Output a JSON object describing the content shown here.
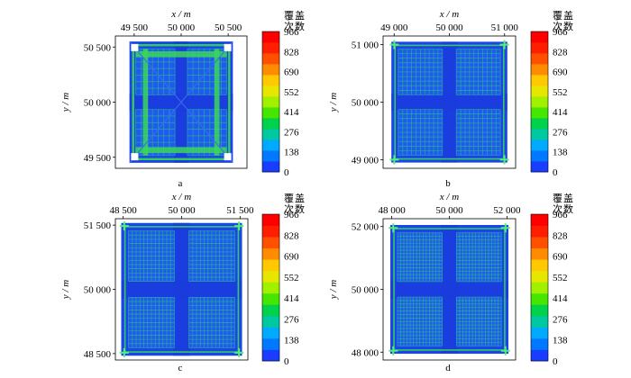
{
  "chart_data": [
    {
      "type": "heatmap",
      "panel_label": "a",
      "xlabel": "x / m",
      "ylabel": "y / m",
      "x_ticks": [
        {
          "value": 49500,
          "label": "49 500"
        },
        {
          "value": 50000,
          "label": "50 000"
        },
        {
          "value": 50500,
          "label": "50 500"
        }
      ],
      "y_ticks": [
        {
          "value": 49500,
          "label": "49 500"
        },
        {
          "value": 50000,
          "label": "50 000"
        },
        {
          "value": 50500,
          "label": "50 500"
        }
      ],
      "xlim": [
        49300,
        50700
      ],
      "ylim": [
        49400,
        50600
      ],
      "survey_square": [
        49450,
        50550
      ],
      "colorbar": {
        "title_line1": "覆盖",
        "title_line2": "次数",
        "range": [
          0,
          966
        ],
        "tick_values": [
          0,
          138,
          276,
          414,
          552,
          690,
          828,
          966
        ],
        "tick_labels": [
          "0",
          "138",
          "276",
          "414",
          "552",
          "690",
          "828",
          "966"
        ],
        "colors": [
          "#1a3cff",
          "#0078ff",
          "#00aaff",
          "#00c8a0",
          "#00d24b",
          "#46e600",
          "#a0f000",
          "#e6e600",
          "#ffc800",
          "#ff8c00",
          "#ff5000",
          "#ff1e00",
          "#ff0000"
        ]
      }
    },
    {
      "type": "heatmap",
      "panel_label": "b",
      "xlabel": "x / m",
      "ylabel": "y / m",
      "x_ticks": [
        {
          "value": 49000,
          "label": "49 000"
        },
        {
          "value": 50000,
          "label": "50 000"
        },
        {
          "value": 51000,
          "label": "51 000"
        }
      ],
      "y_ticks": [
        {
          "value": 49000,
          "label": "49 000"
        },
        {
          "value": 50000,
          "label": "50 000"
        },
        {
          "value": 51000,
          "label": "51 000"
        }
      ],
      "xlim": [
        48800,
        51200
      ],
      "ylim": [
        48850,
        51150
      ],
      "survey_square": [
        48950,
        51050
      ],
      "colorbar": {
        "title_line1": "覆盖",
        "title_line2": "次数",
        "range": [
          0,
          966
        ],
        "tick_values": [
          0,
          138,
          276,
          414,
          552,
          690,
          828,
          966
        ],
        "tick_labels": [
          "0",
          "138",
          "276",
          "414",
          "552",
          "690",
          "828",
          "966"
        ],
        "colors": [
          "#1a3cff",
          "#0078ff",
          "#00aaff",
          "#00c8a0",
          "#00d24b",
          "#46e600",
          "#a0f000",
          "#e6e600",
          "#ffc800",
          "#ff8c00",
          "#ff5000",
          "#ff1e00",
          "#ff0000"
        ]
      }
    },
    {
      "type": "heatmap",
      "panel_label": "c",
      "xlabel": "x / m",
      "ylabel": "y / m",
      "x_ticks": [
        {
          "value": 48500,
          "label": "48 500"
        },
        {
          "value": 50000,
          "label": "50 000"
        },
        {
          "value": 51500,
          "label": "51 500"
        }
      ],
      "y_ticks": [
        {
          "value": 48500,
          "label": "48 500"
        },
        {
          "value": 50000,
          "label": "50 000"
        },
        {
          "value": 51500,
          "label": "51 500"
        }
      ],
      "xlim": [
        48300,
        51700
      ],
      "ylim": [
        48350,
        51650
      ],
      "survey_square": [
        48450,
        51550
      ],
      "colorbar": {
        "title_line1": "覆盖",
        "title_line2": "次数",
        "range": [
          0,
          966
        ],
        "tick_values": [
          0,
          138,
          276,
          414,
          552,
          690,
          828,
          966
        ],
        "tick_labels": [
          "0",
          "138",
          "276",
          "414",
          "552",
          "690",
          "828",
          "966"
        ],
        "colors": [
          "#1a3cff",
          "#0078ff",
          "#00aaff",
          "#00c8a0",
          "#00d24b",
          "#46e600",
          "#a0f000",
          "#e6e600",
          "#ffc800",
          "#ff8c00",
          "#ff5000",
          "#ff1e00",
          "#ff0000"
        ]
      }
    },
    {
      "type": "heatmap",
      "panel_label": "d",
      "xlabel": "x / m",
      "ylabel": "y / m",
      "x_ticks": [
        {
          "value": 48000,
          "label": "48 000"
        },
        {
          "value": 50000,
          "label": "50 000"
        },
        {
          "value": 52000,
          "label": "52 000"
        }
      ],
      "y_ticks": [
        {
          "value": 48000,
          "label": "48 000"
        },
        {
          "value": 50000,
          "label": "50 000"
        },
        {
          "value": 52000,
          "label": "52 000"
        }
      ],
      "xlim": [
        47700,
        52300
      ],
      "ylim": [
        47750,
        52250
      ],
      "survey_square": [
        47950,
        52050
      ],
      "colorbar": {
        "title_line1": "覆盖",
        "title_line2": "次数",
        "range": [
          0,
          966
        ],
        "tick_values": [
          0,
          138,
          276,
          414,
          552,
          690,
          828,
          966
        ],
        "tick_labels": [
          "0",
          "138",
          "276",
          "414",
          "552",
          "690",
          "828",
          "966"
        ],
        "colors": [
          "#1a3cff",
          "#0078ff",
          "#00aaff",
          "#00c8a0",
          "#00d24b",
          "#46e600",
          "#a0f000",
          "#e6e600",
          "#ffc800",
          "#ff8c00",
          "#ff5000",
          "#ff1e00",
          "#ff0000"
        ]
      }
    }
  ]
}
